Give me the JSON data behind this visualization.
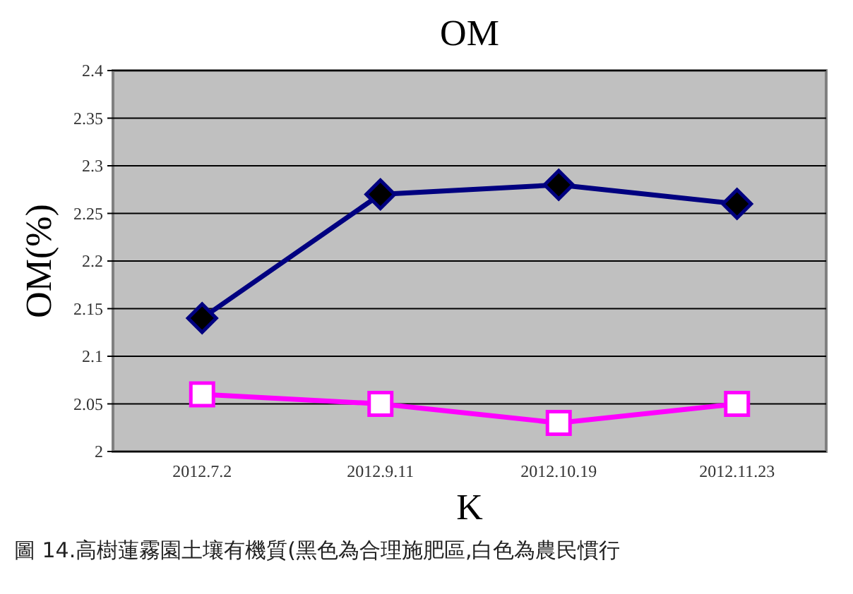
{
  "chart_data": {
    "type": "line",
    "title": "OM",
    "xlabel": "K",
    "ylabel": "OM(%)",
    "categories": [
      "2012.7.2",
      "2012.9.11",
      "2012.10.19",
      "2012.11.23"
    ],
    "series": [
      {
        "color": "#000080",
        "marker": "diamond",
        "values": [
          2.14,
          2.27,
          2.28,
          2.26
        ]
      },
      {
        "color": "#ff00ff",
        "marker": "square",
        "values": [
          2.06,
          2.05,
          2.03,
          2.05
        ]
      }
    ],
    "ylim": [
      2,
      2.4
    ],
    "yticks": [
      2,
      2.05,
      2.1,
      2.15,
      2.2,
      2.25,
      2.3,
      2.35,
      2.4
    ],
    "grid": "y",
    "annotations": [
      "圖 14.高樹蓮霧園土壤有機質(黑色為合理施肥區,白色為農民慣行"
    ]
  }
}
